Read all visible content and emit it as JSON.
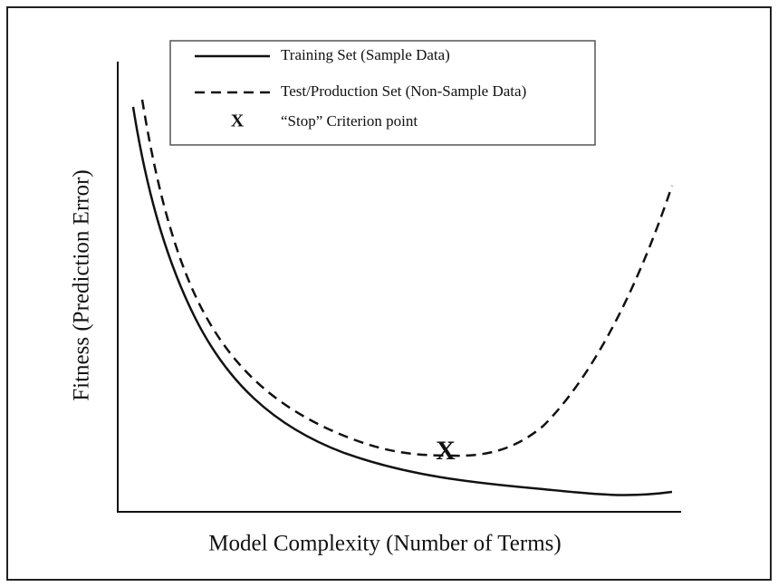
{
  "legend": {
    "entries": [
      {
        "symbol": "solid",
        "label": "Training Set (Sample Data)"
      },
      {
        "symbol": "dashed",
        "label": "Test/Production Set (Non-Sample Data)"
      },
      {
        "symbol": "X",
        "label": "“Stop” Criterion point"
      }
    ]
  },
  "axes": {
    "x_label": "Model Complexity (Number of Terms)",
    "y_label": "Fitness (Prediction Error)"
  },
  "marker": {
    "label": "X"
  }
}
